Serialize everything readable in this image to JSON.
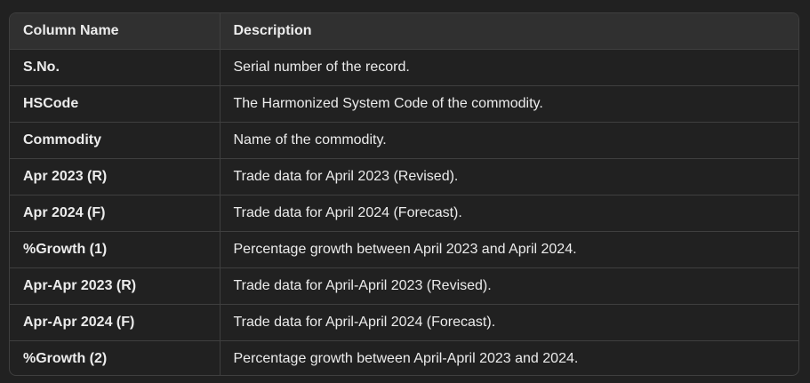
{
  "table": {
    "headers": [
      "Column Name",
      "Description"
    ],
    "rows": [
      [
        "S.No.",
        "Serial number of the record."
      ],
      [
        "HSCode",
        "The Harmonized System Code of the commodity."
      ],
      [
        "Commodity",
        "Name of the commodity."
      ],
      [
        "Apr 2023 (R)",
        "Trade data for April 2023 (Revised)."
      ],
      [
        "Apr 2024 (F)",
        "Trade data for April 2024 (Forecast)."
      ],
      [
        "%Growth (1)",
        "Percentage growth between April 2023 and April 2024."
      ],
      [
        "Apr-Apr 2023 (R)",
        "Trade data for April-April 2023 (Revised)."
      ],
      [
        "Apr-Apr 2024 (F)",
        "Trade data for April-April 2024 (Forecast)."
      ],
      [
        "%Growth (2)",
        "Percentage growth between April-April 2023 and 2024."
      ]
    ]
  },
  "colors": {
    "background": "#212121",
    "header_background": "#303030",
    "border": "#3f3f3f",
    "text": "#ececec"
  }
}
